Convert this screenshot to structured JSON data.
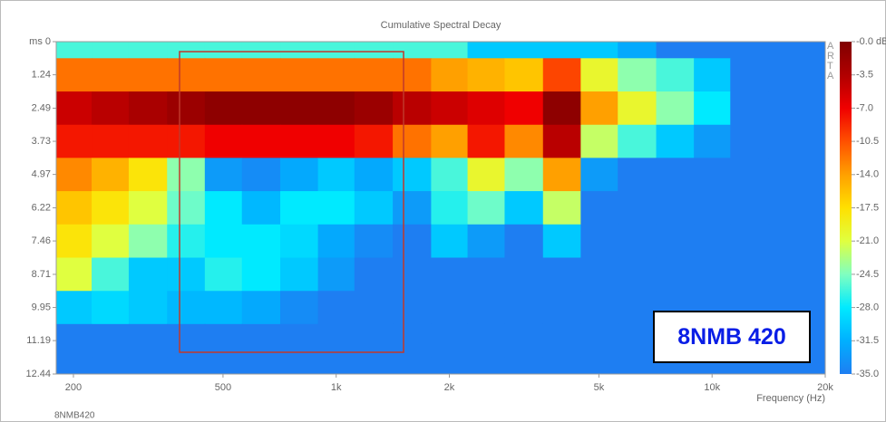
{
  "chart_data": {
    "type": "heatmap",
    "title": "Cumulative Spectral Decay",
    "x_label": "Frequency (Hz)",
    "watermark": "ARTA",
    "footer": "8NMB420",
    "annotation": "8NMB 420",
    "x": [
      200,
      250,
      315,
      400,
      500,
      630,
      800,
      1000,
      1250,
      1600,
      2000,
      2500,
      3150,
      4000,
      5000,
      6300,
      8000,
      10000,
      12500,
      16000
    ],
    "y": [
      0,
      1.24,
      2.49,
      3.73,
      4.97,
      6.22,
      7.46,
      8.71,
      9.95,
      11.19,
      12.44
    ],
    "z": [
      [
        -26,
        -26,
        -26,
        -26,
        -26,
        -26,
        -26,
        -26,
        -26,
        -26,
        -26,
        -30,
        -30,
        -30,
        -30,
        -32,
        -35,
        -35,
        -35,
        -35
      ],
      [
        -12,
        -12,
        -12,
        -12,
        -12,
        -12,
        -12,
        -12,
        -12,
        -12,
        -14,
        -15,
        -16,
        -10,
        -20,
        -24,
        -26,
        -30,
        -35,
        -35
      ],
      [
        -5,
        -4,
        -3,
        -2,
        -1,
        -1,
        -1,
        -1,
        -2,
        -4,
        -5,
        -6,
        -7,
        -1,
        -14,
        -20,
        -24,
        -28,
        -35,
        -35
      ],
      [
        -8,
        -8,
        -8,
        -8,
        -7,
        -7,
        -7,
        -7,
        -8,
        -12,
        -14,
        -8,
        -13,
        -4,
        -22,
        -26,
        -30,
        -33,
        -35,
        -35
      ],
      [
        -13,
        -15,
        -18,
        -24,
        -33,
        -34,
        -32,
        -30,
        -32,
        -30,
        -26,
        -20,
        -24,
        -14,
        -33,
        -35,
        -35,
        -35,
        -35,
        -35
      ],
      [
        -16,
        -18,
        -21,
        -25,
        -28,
        -31,
        -28,
        -28,
        -30,
        -33,
        -27,
        -25,
        -30,
        -22,
        -35,
        -35,
        -35,
        -35,
        -35,
        -35
      ],
      [
        -18,
        -21,
        -24,
        -27,
        -28,
        -28,
        -29,
        -32,
        -34,
        -35,
        -30,
        -33,
        -35,
        -30,
        -35,
        -35,
        -35,
        -35,
        -35,
        -35
      ],
      [
        -21,
        -26,
        -30,
        -30,
        -27,
        -28,
        -30,
        -33,
        -35,
        -35,
        -35,
        -35,
        -35,
        -35,
        -35,
        -35,
        -35,
        -35,
        -35,
        -35
      ],
      [
        -30,
        -29,
        -30,
        -31,
        -31,
        -32,
        -34,
        -35,
        -35,
        -35,
        -35,
        -35,
        -35,
        -35,
        -35,
        -35,
        -35,
        -35,
        -35,
        -35
      ],
      [
        -35,
        -35,
        -35,
        -35,
        -35,
        -35,
        -35,
        -35,
        -35,
        -35,
        -35,
        -35,
        -35,
        -35,
        -35,
        -35,
        -35,
        -35,
        -35,
        -35
      ],
      [
        -35,
        -35,
        -35,
        -35,
        -35,
        -35,
        -35,
        -35,
        -35,
        -35,
        -35,
        -35,
        -35,
        -35,
        -35,
        -35,
        -35,
        -35,
        -35,
        -35
      ]
    ],
    "xlim": [
      180,
      20000
    ],
    "log_x": true,
    "xticks": [
      200,
      500,
      {
        "value": 1000,
        "label": "1k"
      },
      {
        "value": 2000,
        "label": "2k"
      },
      {
        "value": 5000,
        "label": "5k"
      },
      {
        "value": 10000,
        "label": "10k"
      },
      {
        "value": 20000,
        "label": "20k"
      }
    ],
    "ylim": [
      0,
      12.44
    ],
    "y_reversed": true,
    "yticks": [
      {
        "value": 0,
        "label": "ms 0"
      },
      1.24,
      2.49,
      3.73,
      4.97,
      6.22,
      7.46,
      8.71,
      9.95,
      11.19,
      12.44
    ],
    "clim": [
      -35,
      0
    ],
    "cticks": [
      {
        "value": 0,
        "label": "-0.0 dB"
      },
      -3.5,
      {
        "value": -7,
        "label": "-7.0"
      },
      -10.5,
      {
        "value": -14,
        "label": "-14.0"
      },
      -17.5,
      {
        "value": -21,
        "label": "-21.0"
      },
      -24.5,
      {
        "value": -28,
        "label": "-28.0"
      },
      -31.5,
      {
        "value": -35,
        "label": "-35.0"
      }
    ],
    "colorscale": [
      "#1e7ef2",
      "#00b0ff",
      "#00eaff",
      "#80ffc0",
      "#e0ff40",
      "#ffe000",
      "#ffa000",
      "#ff5000",
      "#f00000",
      "#b00000",
      "#800000"
    ]
  }
}
